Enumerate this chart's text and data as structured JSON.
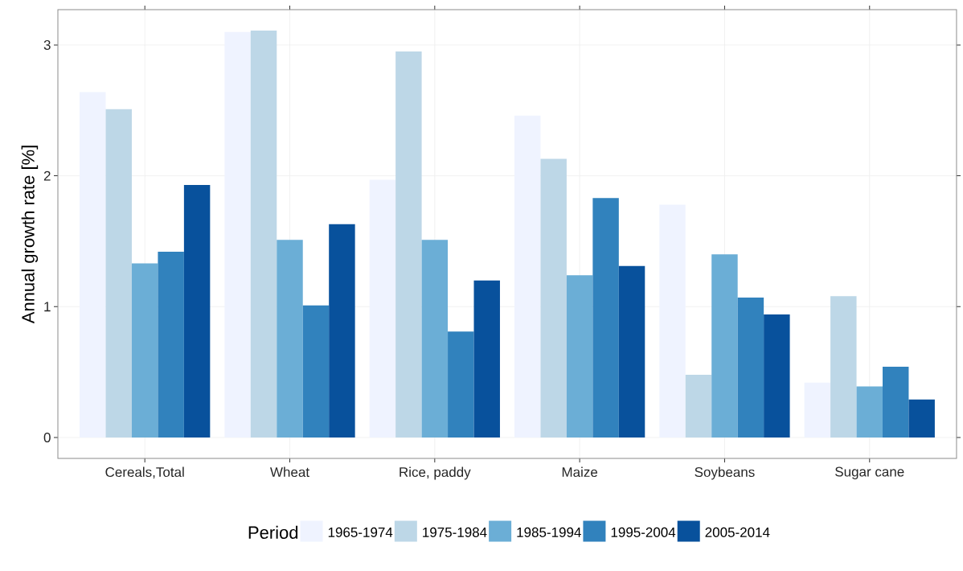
{
  "chart_data": {
    "type": "bar",
    "categories": [
      "Cereals,Total",
      "Wheat",
      "Rice, paddy",
      "Maize",
      "Soybeans",
      "Sugar cane"
    ],
    "series": [
      {
        "name": "1965-1974",
        "color": "#eff3ff",
        "values": [
          2.64,
          3.1,
          1.97,
          2.46,
          1.78,
          0.42
        ]
      },
      {
        "name": "1975-1984",
        "color": "#bdd7e7",
        "values": [
          2.51,
          3.11,
          2.95,
          2.13,
          0.48,
          1.08
        ]
      },
      {
        "name": "1985-1994",
        "color": "#6baed6",
        "values": [
          1.33,
          1.51,
          1.51,
          1.24,
          1.4,
          0.39
        ]
      },
      {
        "name": "1995-2004",
        "color": "#3182bd",
        "values": [
          1.42,
          1.01,
          0.81,
          1.83,
          1.07,
          0.54
        ]
      },
      {
        "name": "2005-2014",
        "color": "#08519c",
        "values": [
          1.93,
          1.63,
          1.2,
          1.31,
          0.94,
          0.29
        ]
      }
    ],
    "ylabel": "Annual growth rate [%]",
    "legend_title": "Period",
    "legend": "bottom",
    "ylim": [
      -0.16,
      3.27
    ],
    "yticks": [
      0,
      1,
      2,
      3
    ],
    "grid": true
  }
}
